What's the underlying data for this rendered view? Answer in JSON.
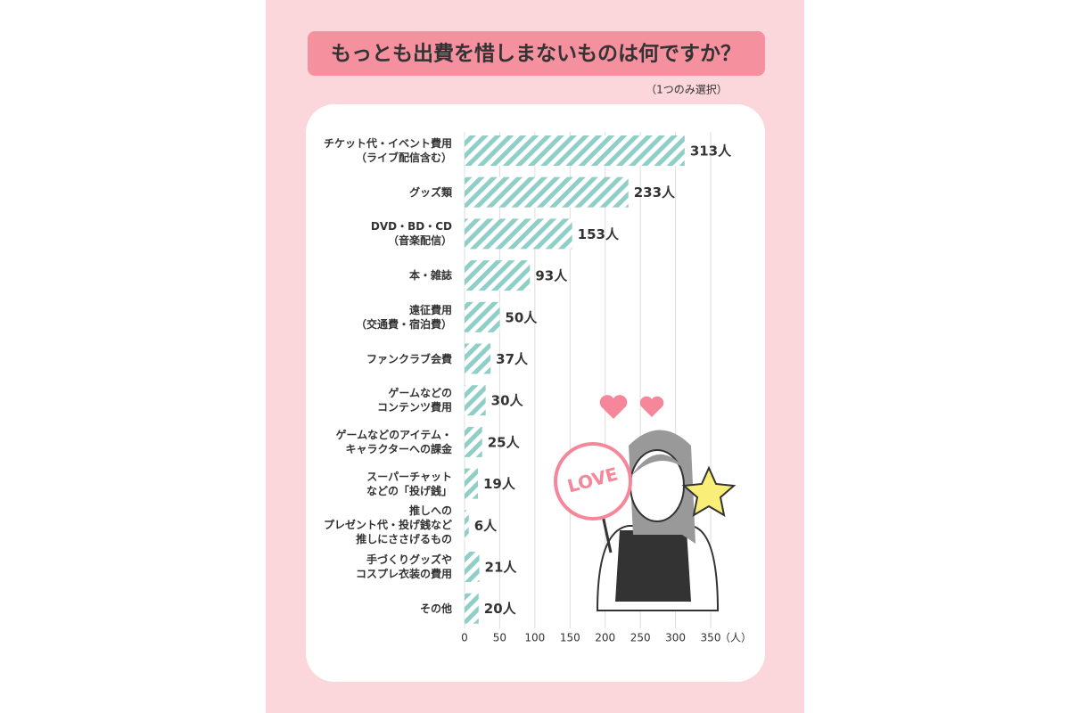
{
  "chart_data": {
    "type": "hbar",
    "title": "もっとも出費を惜しまないものは何ですか？",
    "subtitle": "（1つのみ選択）",
    "categories": [
      "チケット代・イベント費用\n（ライブ配信含む）",
      "グッズ類",
      "DVD・BD・CD\n（音楽配信）",
      "本・雑誌",
      "遠征費用\n（交通費・宿泊費）",
      "ファンクラブ会費",
      "ゲームなどの\nコンテンツ費用",
      "ゲームなどのアイテム・\nキャラクターへの課金",
      "スーパーチャット\nなどの「投げ銭」",
      "推しへの\nプレゼント代・投げ銭など\n推しにささげるもの",
      "手づくりグッズや\nコスプレ衣装の費用",
      "その他"
    ],
    "values": [
      313,
      233,
      153,
      93,
      50,
      37,
      30,
      25,
      19,
      6,
      21,
      20
    ],
    "value_labels": [
      "313人",
      "233人",
      "153人",
      "93人",
      "50人",
      "37人",
      "30人",
      "25人",
      "19人",
      "6人",
      "21人",
      "20人"
    ],
    "color": "#8fcfc8",
    "xlim": [
      0,
      350
    ],
    "xticks": [
      0,
      50,
      100,
      150,
      200,
      250,
      300,
      350
    ],
    "x_label": "（人）",
    "grid": true,
    "illustration_text": "LOVE"
  }
}
